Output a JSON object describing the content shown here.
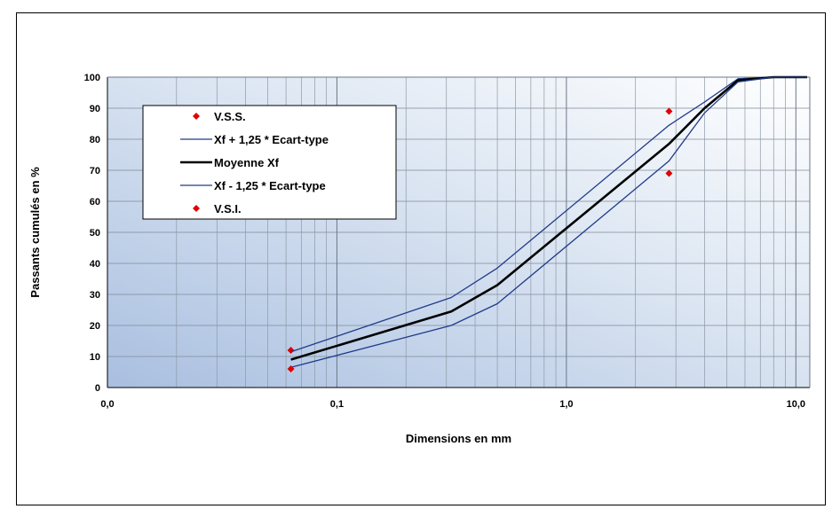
{
  "chart_data": {
    "type": "line",
    "xlabel": "Dimensions en mm",
    "ylabel": "Passants cumulés en %",
    "x_scale": "log",
    "xlim": [
      0.01,
      11.5
    ],
    "ylim": [
      0,
      100
    ],
    "grid": true,
    "legend_position": "top-left",
    "x_tick_labels": [
      {
        "value": 0.01,
        "label": "0,0"
      },
      {
        "value": 0.1,
        "label": "0,1"
      },
      {
        "value": 1,
        "label": "1,0"
      },
      {
        "value": 10,
        "label": "10,0"
      }
    ],
    "y_ticks": [
      0,
      10,
      20,
      30,
      40,
      50,
      60,
      70,
      80,
      90,
      100
    ],
    "series": [
      {
        "name": "V.S.S.",
        "kind": "marker",
        "color": "#e00000",
        "x": [
          0.063,
          2.8
        ],
        "y": [
          12,
          89
        ]
      },
      {
        "name": "Xf + 1,25 * Ecart-type",
        "kind": "line",
        "color": "#1f3a8a",
        "x": [
          0.063,
          0.315,
          0.5,
          2.8,
          4.0,
          5.6,
          8.0,
          11.2
        ],
        "y": [
          11.5,
          29,
          38.5,
          84.5,
          92,
          99.5,
          100,
          100
        ]
      },
      {
        "name": "Moyenne Xf",
        "kind": "line",
        "color": "#000000",
        "x": [
          0.063,
          0.315,
          0.5,
          2.8,
          4.0,
          5.6,
          8.0,
          11.2
        ],
        "y": [
          9,
          24.5,
          33,
          78.5,
          90,
          99,
          100,
          100
        ]
      },
      {
        "name": "Xf - 1,25 * Ecart-type",
        "kind": "line",
        "color": "#1f3a8a",
        "x": [
          0.063,
          0.315,
          0.5,
          2.8,
          4.0,
          5.6,
          8.0,
          11.2
        ],
        "y": [
          6.5,
          20,
          27,
          73,
          88.5,
          98.5,
          100,
          100
        ]
      },
      {
        "name": "V.S.I.",
        "kind": "marker",
        "color": "#e00000",
        "x": [
          0.063,
          2.8
        ],
        "y": [
          6,
          69
        ]
      }
    ]
  }
}
